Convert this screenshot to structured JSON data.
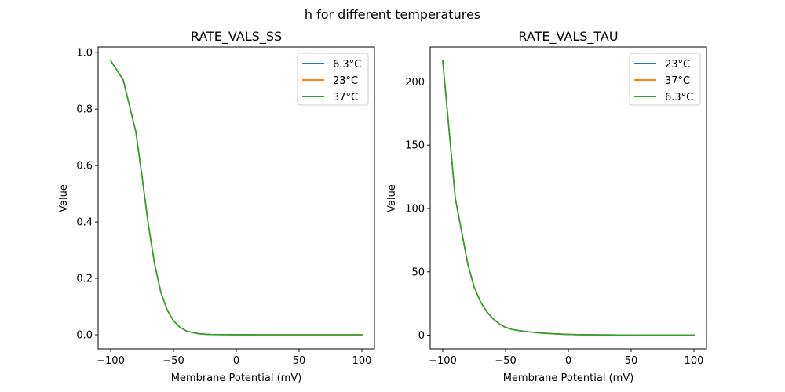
{
  "figure": {
    "suptitle": "h for different temperatures"
  },
  "chart_data": [
    {
      "type": "line",
      "title": "RATE_VALS_SS",
      "xlabel": "Membrane Potential (mV)",
      "ylabel": "Value",
      "xlim": [
        -110,
        110
      ],
      "ylim": [
        -0.05,
        1.02
      ],
      "xticks": [
        -100,
        -50,
        0,
        50,
        100
      ],
      "xtick_labels": [
        "−100",
        "−50",
        "0",
        "50",
        "100"
      ],
      "yticks": [
        0.0,
        0.2,
        0.4,
        0.6,
        0.8,
        1.0
      ],
      "ytick_labels": [
        "0.0",
        "0.2",
        "0.4",
        "0.6",
        "0.8",
        "1.0"
      ],
      "grid": false,
      "legend_position": "top-right",
      "x": [
        -100,
        -90,
        -80,
        -75,
        -70,
        -65,
        -60,
        -55,
        -50,
        -45,
        -40,
        -35,
        -30,
        -25,
        -20,
        -10,
        0,
        10,
        20,
        30,
        40,
        50,
        60,
        70,
        80,
        90,
        100
      ],
      "series": [
        {
          "name": "6.3°C",
          "color": "#1f77b4",
          "values": [
            0.972,
            0.903,
            0.72,
            0.56,
            0.39,
            0.25,
            0.15,
            0.088,
            0.05,
            0.027,
            0.014,
            0.008,
            0.004,
            0.002,
            0.001,
            0.0005,
            0.0002,
            0.0001,
            0.0,
            0.0,
            0.0,
            0.0,
            0.0,
            0.0,
            0.0,
            0.0,
            0.0
          ]
        },
        {
          "name": "23°C",
          "color": "#ff7f0e",
          "values": [
            0.972,
            0.903,
            0.72,
            0.56,
            0.39,
            0.25,
            0.15,
            0.088,
            0.05,
            0.027,
            0.014,
            0.008,
            0.004,
            0.002,
            0.001,
            0.0005,
            0.0002,
            0.0001,
            0.0,
            0.0,
            0.0,
            0.0,
            0.0,
            0.0,
            0.0,
            0.0,
            0.0
          ]
        },
        {
          "name": "37°C",
          "color": "#2ca02c",
          "values": [
            0.972,
            0.903,
            0.72,
            0.56,
            0.39,
            0.25,
            0.15,
            0.088,
            0.05,
            0.027,
            0.014,
            0.008,
            0.004,
            0.002,
            0.001,
            0.0005,
            0.0002,
            0.0001,
            0.0,
            0.0,
            0.0,
            0.0,
            0.0,
            0.0,
            0.0,
            0.0,
            0.0
          ]
        }
      ]
    },
    {
      "type": "line",
      "title": "RATE_VALS_TAU",
      "xlabel": "Membrane Potential (mV)",
      "ylabel": "Value",
      "xlim": [
        -110,
        110
      ],
      "ylim": [
        -10.8,
        227.5
      ],
      "xticks": [
        -100,
        -50,
        0,
        50,
        100
      ],
      "xtick_labels": [
        "−100",
        "−50",
        "0",
        "50",
        "100"
      ],
      "yticks": [
        0,
        50,
        100,
        150,
        200
      ],
      "ytick_labels": [
        "0",
        "50",
        "100",
        "150",
        "200"
      ],
      "grid": false,
      "legend_position": "top-right",
      "x": [
        -100,
        -90,
        -80,
        -75,
        -70,
        -65,
        -60,
        -55,
        -50,
        -45,
        -40,
        -35,
        -30,
        -25,
        -20,
        -10,
        0,
        10,
        20,
        30,
        40,
        50,
        60,
        70,
        80,
        90,
        100
      ],
      "series": [
        {
          "name": "23°C",
          "color": "#1f77b4",
          "values": [
            216.7,
            108,
            56,
            38,
            26.5,
            18.5,
            13,
            9,
            6.2,
            4.6,
            3.7,
            3.0,
            2.5,
            2.0,
            1.6,
            1.0,
            0.6,
            0.4,
            0.3,
            0.2,
            0.15,
            0.1,
            0.1,
            0.05,
            0.05,
            0.05,
            0.05
          ]
        },
        {
          "name": "37°C",
          "color": "#ff7f0e",
          "values": [
            216.7,
            108,
            56,
            38,
            26.5,
            18.5,
            13,
            9,
            6.2,
            4.6,
            3.7,
            3.0,
            2.5,
            2.0,
            1.6,
            1.0,
            0.6,
            0.4,
            0.3,
            0.2,
            0.15,
            0.1,
            0.1,
            0.05,
            0.05,
            0.05,
            0.05
          ]
        },
        {
          "name": "6.3°C",
          "color": "#2ca02c",
          "values": [
            216.7,
            108,
            56,
            38,
            26.5,
            18.5,
            13,
            9,
            6.2,
            4.6,
            3.7,
            3.0,
            2.5,
            2.0,
            1.6,
            1.0,
            0.6,
            0.4,
            0.3,
            0.2,
            0.15,
            0.1,
            0.1,
            0.05,
            0.05,
            0.05,
            0.05
          ]
        }
      ]
    }
  ]
}
